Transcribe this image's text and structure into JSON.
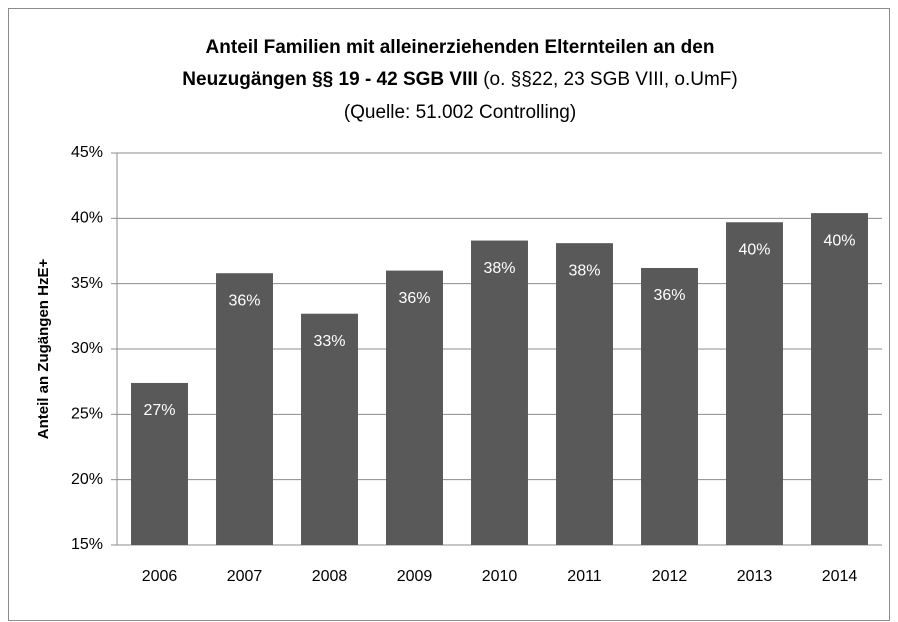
{
  "chart_data": {
    "type": "bar",
    "title": [
      "Anteil Familien mit alleinerziehenden Elternteilen an den",
      "Neuzugängen §§ 19 - 42 SGB VIII"
    ],
    "title_note": "(o. §§22, 23 SGB VIII, o.UmF)",
    "subtitle": "(Quelle: 51.002 Controlling)",
    "y_label": "Anteil an Zugängen  HzE+",
    "categories": [
      "2006",
      "2007",
      "2008",
      "2009",
      "2010",
      "2011",
      "2012",
      "2013",
      "2014"
    ],
    "values": [
      27.4,
      35.8,
      32.7,
      36.0,
      38.3,
      38.1,
      36.2,
      39.7,
      40.4
    ],
    "value_labels": [
      "27%",
      "36%",
      "33%",
      "36%",
      "38%",
      "38%",
      "36%",
      "40%",
      "40%"
    ],
    "color": "#595959",
    "ylim": [
      15,
      45
    ],
    "yticks": [
      {
        "value": 15,
        "label": "15%"
      },
      {
        "value": 20,
        "label": "20%"
      },
      {
        "value": 25,
        "label": "25%"
      },
      {
        "value": 30,
        "label": "30%"
      },
      {
        "value": 35,
        "label": "35%"
      },
      {
        "value": 40,
        "label": "40%"
      },
      {
        "value": 45,
        "label": "45%"
      }
    ],
    "grid": true
  }
}
